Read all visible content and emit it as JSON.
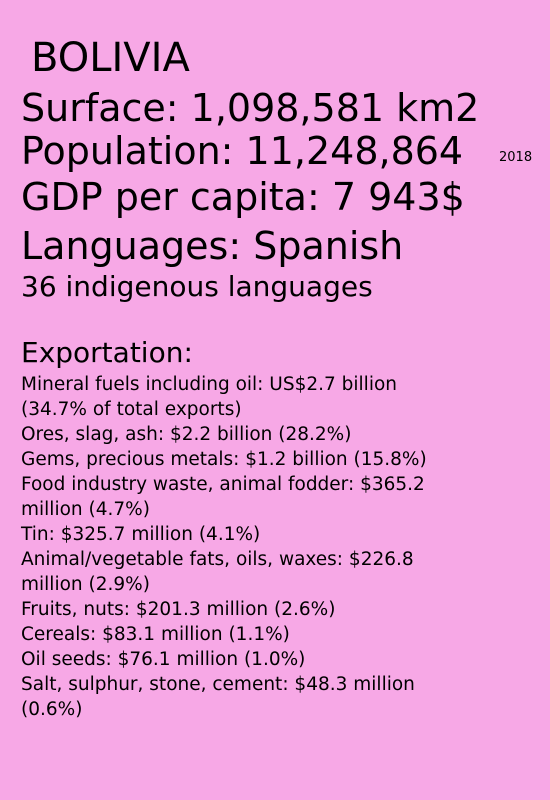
{
  "country": "BOLIVIA",
  "surface": "Surface:  1,098,581 km2",
  "population": {
    "text": "Population:   11,248,864",
    "year": "2018"
  },
  "gdp": "GDP per capita:   7 943$",
  "languages": {
    "main": "Languages: Spanish",
    "secondary": "36 indigenous languages"
  },
  "exportation": {
    "title": "Exportation:",
    "items": [
      {
        "line1": "Mineral fuels including oil: US$2.7 billion",
        "line2": "(34.7% of total exports)"
      },
      {
        "line1": "Ores, slag, ash: $2.2 billion (28.2%)",
        "line2": ""
      },
      {
        "line1": "Gems, precious metals: $1.2 billion (15.8%)",
        "line2": ""
      },
      {
        "line1": "Food industry waste, animal fodder: $365.2",
        "line2": "million (4.7%)"
      },
      {
        "line1": "Tin: $325.7 million (4.1%)",
        "line2": ""
      },
      {
        "line1": "Animal/vegetable fats, oils, waxes: $226.8",
        "line2": "million (2.9%)"
      },
      {
        "line1": "Fruits, nuts: $201.3 million (2.6%)",
        "line2": ""
      },
      {
        "line1": "Cereals: $83.1 million (1.1%)",
        "line2": ""
      },
      {
        "line1": "Oil seeds: $76.1 million (1.0%)",
        "line2": ""
      },
      {
        "line1": "Salt, sulphur, stone, cement: $48.3 million",
        "line2": "(0.6%)"
      }
    ]
  }
}
